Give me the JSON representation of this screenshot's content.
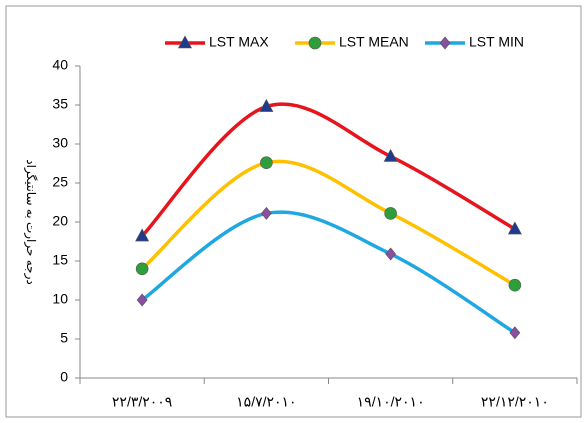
{
  "chart_data": {
    "type": "line",
    "y_label": "درجه حرارت به سانتیگراد",
    "categories": [
      "۲۲/۳/۲۰۰۹",
      "۱۵/۷/۲۰۱۰",
      "۱۹/۱۰/۲۰۱۰",
      "۲۲/۱۲/۲۰۱۰"
    ],
    "series": [
      {
        "name": "LST MAX",
        "color": "#e8141b",
        "marker": "triangle",
        "marker_color": "#1f3b8c",
        "values": [
          18.2,
          34.8,
          28.4,
          19.1
        ]
      },
      {
        "name": "LST MEAN",
        "color": "#ffc000",
        "marker": "circle",
        "marker_color": "#2e9e3a",
        "values": [
          14,
          27.6,
          21.1,
          11.9
        ]
      },
      {
        "name": "LST MIN",
        "color": "#1ea7e1",
        "marker": "diamond",
        "marker_color": "#8a4fa0",
        "values": [
          10,
          21.1,
          15.9,
          5.8
        ]
      }
    ],
    "ylim": [
      0,
      40
    ],
    "yticks": [
      0,
      5,
      10,
      15,
      20,
      25,
      30,
      35,
      40
    ],
    "grid": false,
    "legend": "top"
  }
}
